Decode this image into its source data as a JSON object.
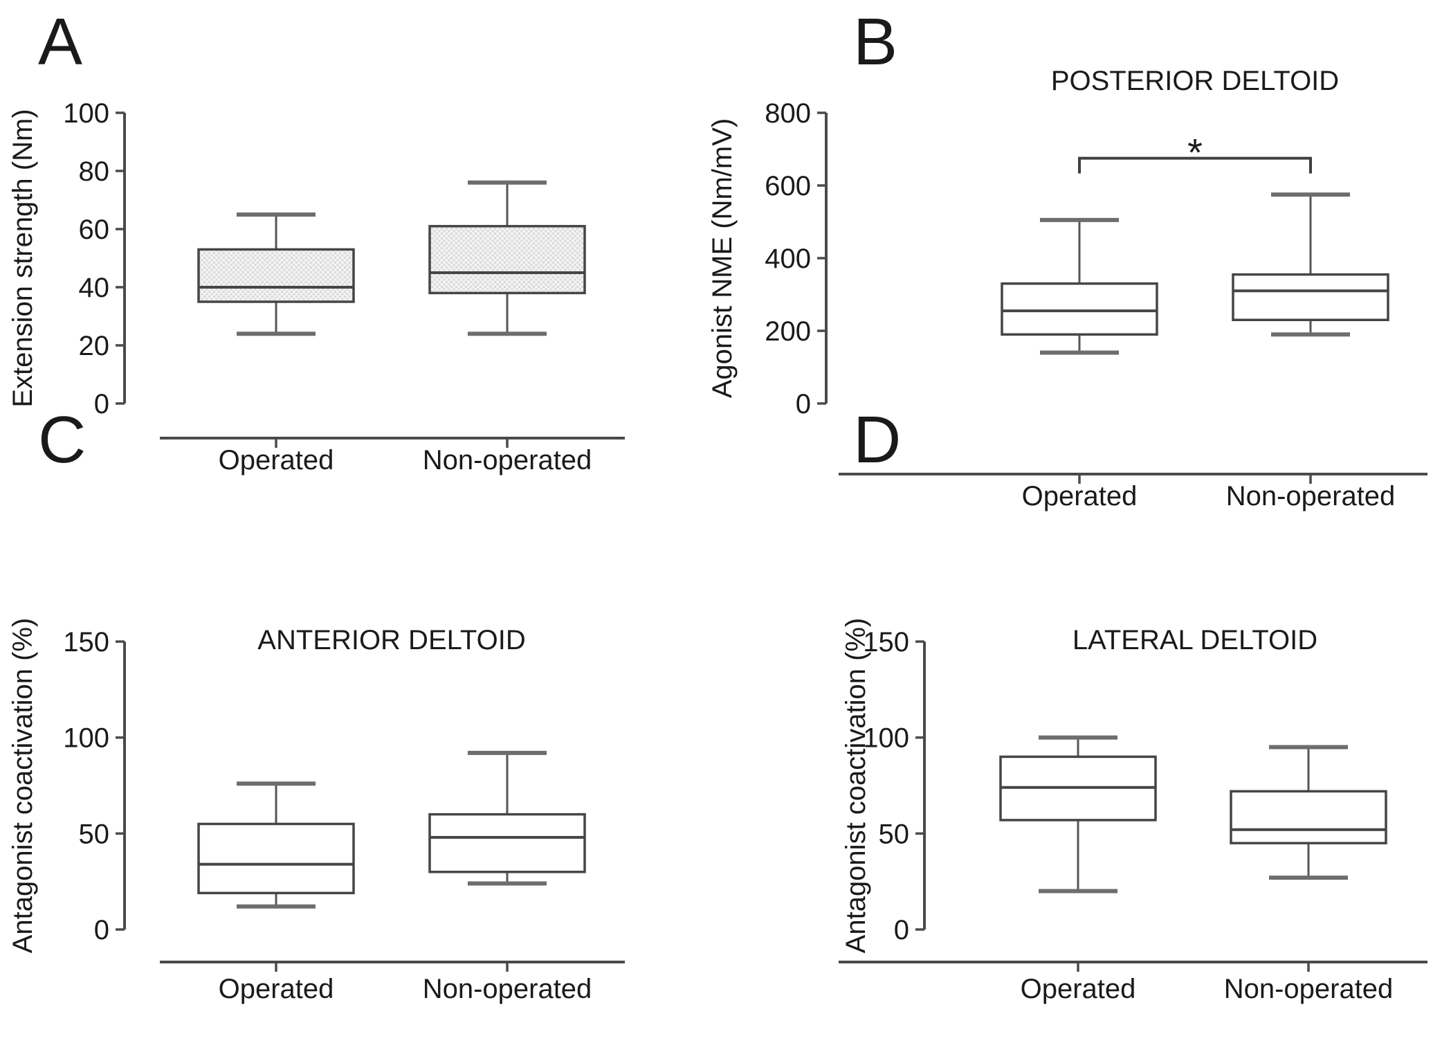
{
  "figure": {
    "background": "#ffffff",
    "group_labels": [
      "Operated",
      "Non-operated"
    ],
    "significance_marker": "*"
  },
  "colors": {
    "axis_line": "#4a4a4a",
    "box_stroke": "#454545",
    "whisker_line": "#555555",
    "whisker_cap": "#6d6d6d",
    "text": "#1a1a1a",
    "hatched_fill_base": "#f2f2f2",
    "hatched_fill_dot": "#d9d9d9",
    "open_fill": "#ffffff",
    "bracket": "#3f3f3f"
  },
  "chart_data": [
    {
      "type": "box",
      "panel_label": "A",
      "title": "",
      "ylabel": "Extension strength (Nm)",
      "xlabel": "",
      "ylim": [
        0,
        100
      ],
      "yticks": [
        0,
        20,
        40,
        60,
        80,
        100
      ],
      "categories": [
        "Operated",
        "Non-operated"
      ],
      "box_style": "hatched",
      "series": [
        {
          "name": "Operated",
          "whisker_low": 24,
          "q1": 35,
          "median": 40,
          "q3": 53,
          "whisker_high": 65
        },
        {
          "name": "Non-operated",
          "whisker_low": 24,
          "q1": 38,
          "median": 45,
          "q3": 61,
          "whisker_high": 76
        }
      ],
      "significance": null
    },
    {
      "type": "box",
      "panel_label": "B",
      "title": "POSTERIOR DELTOID",
      "ylabel": "Agonist NME (Nm/mV)",
      "xlabel": "",
      "ylim": [
        0,
        800
      ],
      "yticks": [
        0,
        200,
        400,
        600,
        800
      ],
      "categories": [
        "Operated",
        "Non-operated"
      ],
      "box_style": "open",
      "series": [
        {
          "name": "Operated",
          "whisker_low": 140,
          "q1": 190,
          "median": 255,
          "q3": 330,
          "whisker_high": 505
        },
        {
          "name": "Non-operated",
          "whisker_low": 190,
          "q1": 230,
          "median": 310,
          "q3": 355,
          "whisker_high": 575
        }
      ],
      "significance": {
        "between": [
          "Operated",
          "Non-operated"
        ],
        "label": "*",
        "y_value": 675
      }
    },
    {
      "type": "box",
      "panel_label": "C",
      "title": "ANTERIOR DELTOID",
      "ylabel": "Antagonist coactivation (%)",
      "xlabel": "",
      "ylim": [
        0,
        150
      ],
      "yticks": [
        0,
        50,
        100,
        150
      ],
      "categories": [
        "Operated",
        "Non-operated"
      ],
      "box_style": "open",
      "series": [
        {
          "name": "Operated",
          "whisker_low": 12,
          "q1": 19,
          "median": 34,
          "q3": 55,
          "whisker_high": 76
        },
        {
          "name": "Non-operated",
          "whisker_low": 24,
          "q1": 30,
          "median": 48,
          "q3": 60,
          "whisker_high": 92
        }
      ],
      "significance": null
    },
    {
      "type": "box",
      "panel_label": "D",
      "title": "LATERAL DELTOID",
      "ylabel": "Antagonist coactivation (%)",
      "xlabel": "",
      "ylim": [
        0,
        150
      ],
      "yticks": [
        0,
        50,
        100,
        150
      ],
      "categories": [
        "Operated",
        "Non-operated"
      ],
      "box_style": "open",
      "series": [
        {
          "name": "Operated",
          "whisker_low": 20,
          "q1": 57,
          "median": 74,
          "q3": 90,
          "whisker_high": 100
        },
        {
          "name": "Non-operated",
          "whisker_low": 27,
          "q1": 45,
          "median": 52,
          "q3": 72,
          "whisker_high": 95
        }
      ],
      "significance": null
    }
  ]
}
